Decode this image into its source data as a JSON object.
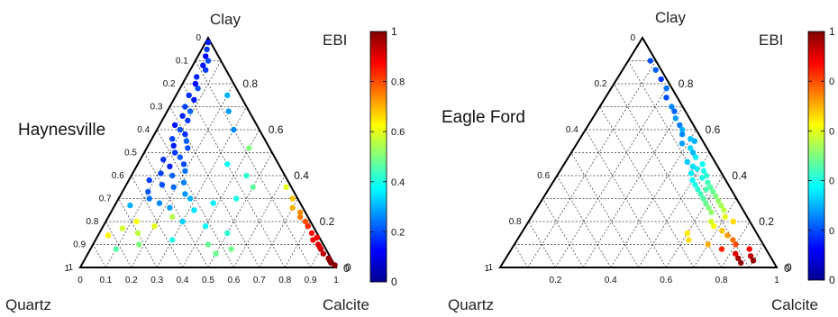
{
  "chart_data": [
    {
      "type": "ternary-scatter",
      "name": "Haynesville",
      "vertices": {
        "top": "Clay",
        "bottom_left": "Quartz",
        "bottom_right": "Calcite"
      },
      "colorbar": {
        "label": "EBI",
        "range": [
          0,
          1
        ],
        "ticks": [
          "0",
          "0.2",
          "0.4",
          "0.6",
          "0.8",
          "1"
        ]
      },
      "left_ticks": [
        "0",
        "0.1",
        "0.2",
        "0.3",
        "0.4",
        "0.5",
        "0.6",
        "0.7",
        "0.8",
        "0.9",
        "1"
      ],
      "right_ticks": [
        "0.8",
        "0.6",
        "0.4",
        "0.2",
        "0"
      ],
      "bottom_ticks": [
        "0",
        "0.1",
        "0.2",
        "0.3",
        "0.4",
        "0.5",
        "0.6",
        "0.7",
        "0.8",
        "0.9",
        "1"
      ],
      "point_columns": [
        "clay",
        "calcite",
        "ebi"
      ],
      "points": [
        [
          0.98,
          0.01,
          0.15
        ],
        [
          0.95,
          0.02,
          0.18
        ],
        [
          0.92,
          0.03,
          0.12
        ],
        [
          0.9,
          0.05,
          0.2
        ],
        [
          0.88,
          0.04,
          0.14
        ],
        [
          0.86,
          0.06,
          0.18
        ],
        [
          0.83,
          0.04,
          0.16
        ],
        [
          0.8,
          0.05,
          0.13
        ],
        [
          0.78,
          0.07,
          0.2
        ],
        [
          0.75,
          0.05,
          0.17
        ],
        [
          0.73,
          0.08,
          0.15
        ],
        [
          0.7,
          0.06,
          0.19
        ],
        [
          0.68,
          0.09,
          0.22
        ],
        [
          0.66,
          0.07,
          0.16
        ],
        [
          0.64,
          0.1,
          0.18
        ],
        [
          0.62,
          0.06,
          0.14
        ],
        [
          0.6,
          0.09,
          0.2
        ],
        [
          0.58,
          0.12,
          0.17
        ],
        [
          0.56,
          0.08,
          0.19
        ],
        [
          0.55,
          0.14,
          0.22
        ],
        [
          0.53,
          0.1,
          0.15
        ],
        [
          0.52,
          0.16,
          0.2
        ],
        [
          0.5,
          0.12,
          0.18
        ],
        [
          0.48,
          0.15,
          0.21
        ],
        [
          0.47,
          0.09,
          0.17
        ],
        [
          0.45,
          0.18,
          0.2
        ],
        [
          0.44,
          0.13,
          0.16
        ],
        [
          0.42,
          0.2,
          0.24
        ],
        [
          0.41,
          0.11,
          0.19
        ],
        [
          0.4,
          0.16,
          0.22
        ],
        [
          0.38,
          0.08,
          0.18
        ],
        [
          0.37,
          0.22,
          0.25
        ],
        [
          0.36,
          0.14,
          0.2
        ],
        [
          0.35,
          0.19,
          0.23
        ],
        [
          0.33,
          0.1,
          0.21
        ],
        [
          0.32,
          0.25,
          0.27
        ],
        [
          0.3,
          0.12,
          0.24
        ],
        [
          0.3,
          0.28,
          0.3
        ],
        [
          0.28,
          0.17,
          0.26
        ],
        [
          0.27,
          0.06,
          0.3
        ],
        [
          0.26,
          0.22,
          0.28
        ],
        [
          0.25,
          0.32,
          0.35
        ],
        [
          0.75,
          0.2,
          0.3
        ],
        [
          0.68,
          0.24,
          0.28
        ],
        [
          0.6,
          0.3,
          0.26
        ],
        [
          0.52,
          0.4,
          0.5
        ],
        [
          0.45,
          0.35,
          0.38
        ],
        [
          0.4,
          0.45,
          0.42
        ],
        [
          0.35,
          0.5,
          0.47
        ],
        [
          0.3,
          0.46,
          0.4
        ],
        [
          0.28,
          0.38,
          0.36
        ],
        [
          0.22,
          0.25,
          0.55
        ],
        [
          0.2,
          0.12,
          0.62
        ],
        [
          0.18,
          0.2,
          0.6
        ],
        [
          0.17,
          0.08,
          0.58
        ],
        [
          0.15,
          0.15,
          0.56
        ],
        [
          0.14,
          0.04,
          0.64
        ],
        [
          0.2,
          0.3,
          0.33
        ],
        [
          0.18,
          0.4,
          0.37
        ],
        [
          0.15,
          0.5,
          0.42
        ],
        [
          0.12,
          0.3,
          0.4
        ],
        [
          0.1,
          0.18,
          0.5
        ],
        [
          0.1,
          0.45,
          0.48
        ],
        [
          0.08,
          0.1,
          0.46
        ],
        [
          0.08,
          0.55,
          0.49
        ],
        [
          0.06,
          0.5,
          0.48
        ],
        [
          0.26,
          0.7,
          0.7
        ],
        [
          0.22,
          0.75,
          0.76
        ],
        [
          0.2,
          0.78,
          0.8
        ],
        [
          0.18,
          0.8,
          0.84
        ],
        [
          0.15,
          0.83,
          0.86
        ],
        [
          0.13,
          0.86,
          0.88
        ],
        [
          0.1,
          0.88,
          0.9
        ],
        [
          0.08,
          0.9,
          0.92
        ],
        [
          0.06,
          0.92,
          0.94
        ],
        [
          0.04,
          0.95,
          0.97
        ],
        [
          0.02,
          0.97,
          0.99
        ],
        [
          0.01,
          0.99,
          0.99
        ],
        [
          0.3,
          0.68,
          0.68
        ],
        [
          0.24,
          0.74,
          0.74
        ],
        [
          0.12,
          0.85,
          0.87
        ],
        [
          0.35,
          0.63,
          0.6
        ],
        [
          0.03,
          0.96,
          0.98
        ],
        [
          0.09,
          0.89,
          0.91
        ]
      ]
    },
    {
      "type": "ternary-scatter",
      "name": "Eagle Ford",
      "vertices": {
        "top": "Clay",
        "bottom_left": "Quartz",
        "bottom_right": "Calcite"
      },
      "colorbar": {
        "label": "EBI",
        "range": [
          0,
          1
        ],
        "ticks": [
          "0",
          "0",
          "0",
          "0",
          "0",
          "1"
        ]
      },
      "left_ticks": [
        "0",
        "0.2",
        "0.4",
        "0.6",
        "0.8",
        "1"
      ],
      "right_ticks": [
        "0.8",
        "0.6",
        "0.4",
        "0.2",
        "0"
      ],
      "bottom_ticks": [
        "0.2",
        "0.4",
        "0.6",
        "0.8",
        "1"
      ],
      "point_columns": [
        "clay",
        "calcite",
        "ebi"
      ],
      "points": [
        [
          0.9,
          0.08,
          0.2
        ],
        [
          0.86,
          0.12,
          0.22
        ],
        [
          0.82,
          0.16,
          0.18
        ],
        [
          0.78,
          0.2,
          0.24
        ],
        [
          0.74,
          0.22,
          0.2
        ],
        [
          0.7,
          0.26,
          0.26
        ],
        [
          0.68,
          0.28,
          0.22
        ],
        [
          0.65,
          0.3,
          0.28
        ],
        [
          0.62,
          0.33,
          0.24
        ],
        [
          0.6,
          0.35,
          0.3
        ],
        [
          0.58,
          0.36,
          0.26
        ],
        [
          0.56,
          0.4,
          0.32
        ],
        [
          0.54,
          0.38,
          0.28
        ],
        [
          0.52,
          0.42,
          0.34
        ],
        [
          0.5,
          0.44,
          0.3
        ],
        [
          0.48,
          0.46,
          0.36
        ],
        [
          0.46,
          0.44,
          0.32
        ],
        [
          0.45,
          0.5,
          0.38
        ],
        [
          0.44,
          0.47,
          0.34
        ],
        [
          0.42,
          0.52,
          0.4
        ],
        [
          0.41,
          0.48,
          0.36
        ],
        [
          0.4,
          0.54,
          0.42
        ],
        [
          0.38,
          0.5,
          0.38
        ],
        [
          0.37,
          0.56,
          0.44
        ],
        [
          0.36,
          0.52,
          0.4
        ],
        [
          0.35,
          0.58,
          0.46
        ],
        [
          0.34,
          0.54,
          0.42
        ],
        [
          0.33,
          0.6,
          0.48
        ],
        [
          0.32,
          0.56,
          0.44
        ],
        [
          0.31,
          0.62,
          0.5
        ],
        [
          0.3,
          0.58,
          0.46
        ],
        [
          0.29,
          0.64,
          0.52
        ],
        [
          0.28,
          0.6,
          0.48
        ],
        [
          0.27,
          0.66,
          0.54
        ],
        [
          0.26,
          0.62,
          0.5
        ],
        [
          0.25,
          0.68,
          0.56
        ],
        [
          0.24,
          0.64,
          0.52
        ],
        [
          0.22,
          0.7,
          0.6
        ],
        [
          0.2,
          0.66,
          0.58
        ],
        [
          0.2,
          0.74,
          0.66
        ],
        [
          0.18,
          0.68,
          0.62
        ],
        [
          0.16,
          0.72,
          0.68
        ],
        [
          0.15,
          0.6,
          0.64
        ],
        [
          0.14,
          0.75,
          0.72
        ],
        [
          0.12,
          0.62,
          0.66
        ],
        [
          0.12,
          0.78,
          0.76
        ],
        [
          0.1,
          0.7,
          0.7
        ],
        [
          0.1,
          0.8,
          0.8
        ],
        [
          0.08,
          0.76,
          0.84
        ],
        [
          0.08,
          0.86,
          0.88
        ],
        [
          0.06,
          0.82,
          0.9
        ],
        [
          0.05,
          0.88,
          0.94
        ],
        [
          0.04,
          0.84,
          0.96
        ],
        [
          0.03,
          0.9,
          0.98
        ],
        [
          0.02,
          0.86,
          0.99
        ],
        [
          0.55,
          0.42,
          0.3
        ],
        [
          0.43,
          0.49,
          0.36
        ],
        [
          0.39,
          0.53,
          0.4
        ],
        [
          0.34,
          0.57,
          0.45
        ]
      ]
    }
  ]
}
